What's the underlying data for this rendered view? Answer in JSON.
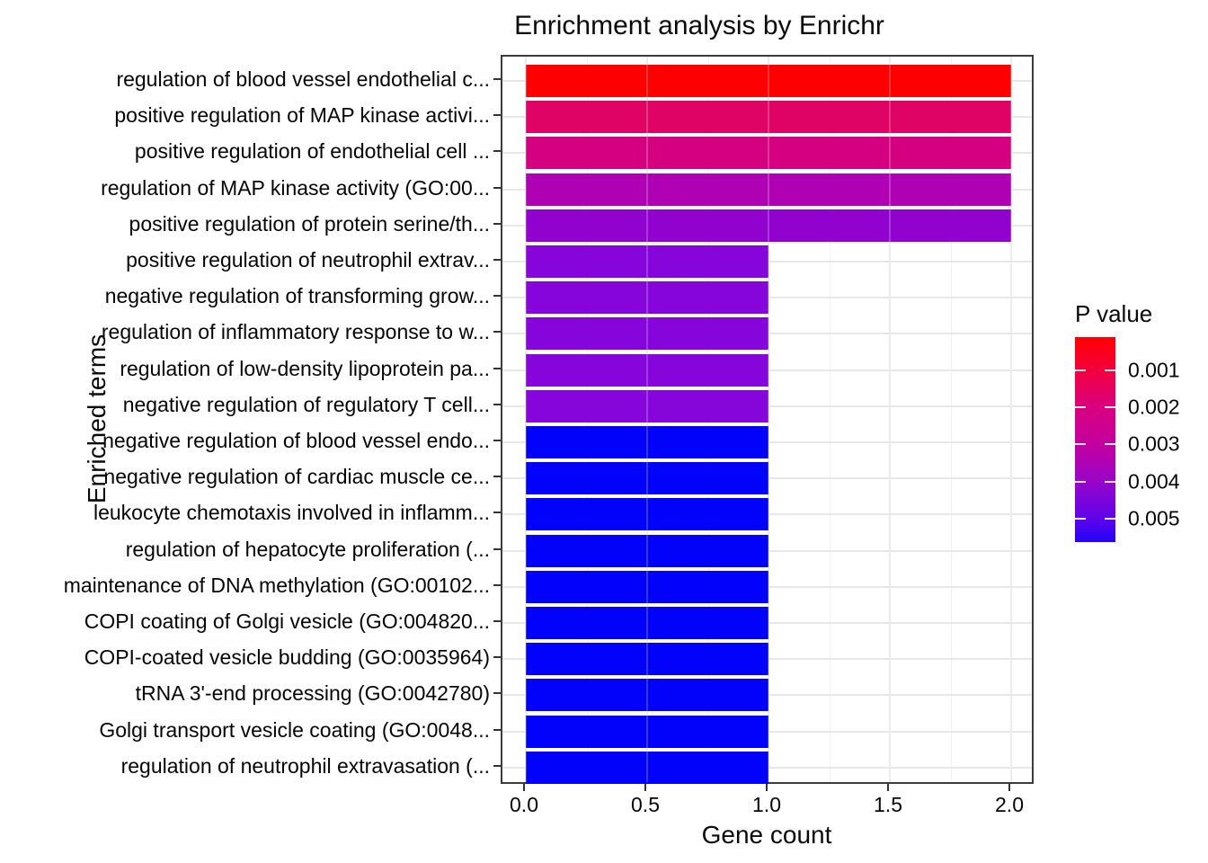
{
  "chart_data": {
    "type": "bar",
    "orientation": "horizontal",
    "title": "Enrichment analysis by Enrichr",
    "xlabel": "Gene count",
    "ylabel": "Enriched terms",
    "xlim": [
      0,
      2.1
    ],
    "xtick_values": [
      0,
      0.5,
      1.0,
      1.5,
      2.0
    ],
    "xtick_labels": [
      "0.0",
      "0.5",
      "1.0",
      "1.5",
      "2.0"
    ],
    "xminor_values": [
      0.25,
      0.75,
      1.25,
      1.75
    ],
    "grid": true,
    "categories": [
      "regulation of blood vessel endothelial c...",
      "positive regulation of MAP kinase activi...",
      "positive regulation of endothelial cell ...",
      "regulation of MAP kinase activity (GO:00...",
      "positive regulation of protein serine/th...",
      "positive regulation of neutrophil extrav...",
      "negative regulation of transforming grow...",
      "regulation of inflammatory response to w...",
      "regulation of low-density lipoprotein pa...",
      "negative regulation of regulatory T cell...",
      "negative regulation of blood vessel endo...",
      "negative regulation of cardiac muscle ce...",
      "leukocyte chemotaxis involved in inflamm...",
      "regulation of hepatocyte proliferation (...",
      "maintenance of DNA methylation (GO:00102...",
      "COPI coating of Golgi vesicle (GO:004820...",
      "COPI-coated vesicle budding (GO:0035964)",
      "tRNA 3'-end processing (GO:0042780)",
      "Golgi transport vesicle coating (GO:0048...",
      "regulation of neutrophil extravasation (..."
    ],
    "values": [
      2,
      2,
      2,
      2,
      2,
      1,
      1,
      1,
      1,
      1,
      1,
      1,
      1,
      1,
      1,
      1,
      1,
      1,
      1,
      1
    ],
    "bar_colors": [
      "#fe0000",
      "#de0365",
      "#d40080",
      "#b000b3",
      "#9102cf",
      "#8505db",
      "#8505db",
      "#8505db",
      "#8505db",
      "#8505db",
      "#0202fa",
      "#0202fa",
      "#0202fa",
      "#0202fa",
      "#0202fa",
      "#0202fa",
      "#0202fa",
      "#0202fa",
      "#0202fa",
      "#0202fa"
    ],
    "legend": {
      "title": "P value",
      "tick_labels": [
        "0.001",
        "0.002",
        "0.003",
        "0.004",
        "0.005"
      ],
      "gradient_low_color": "#ff0000",
      "gradient_high_color": "#2303f8",
      "position": "right"
    }
  }
}
